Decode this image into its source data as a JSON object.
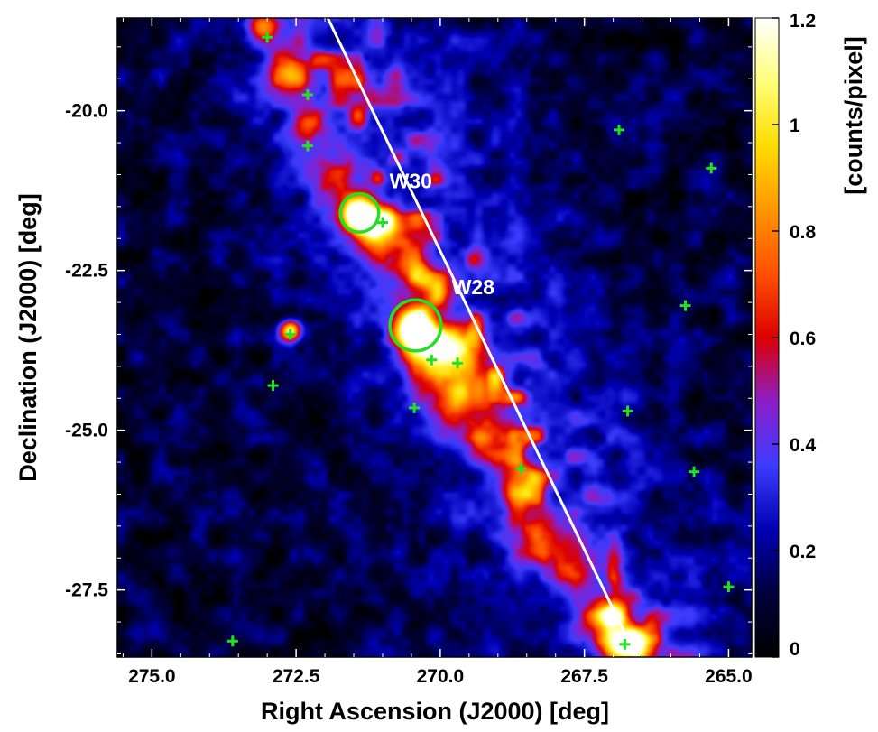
{
  "chart_data": {
    "type": "heatmap",
    "xlabel": "Right Ascension (J2000) [deg]",
    "ylabel": "Declination (J2000) [deg]",
    "x_axis_reversed": true,
    "xlim": [
      275.6,
      264.6
    ],
    "ylim": [
      -28.55,
      -18.55
    ],
    "x_ticks": [
      275.0,
      272.5,
      270.0,
      267.5,
      265.0
    ],
    "x_tick_labels": [
      "275.0",
      "272.5",
      "270.0",
      "267.5",
      "265.0"
    ],
    "y_ticks": [
      -20.0,
      -22.5,
      -25.0,
      -27.5
    ],
    "y_tick_labels": [
      "-20.0",
      "-22.5",
      "-25.0",
      "-27.5"
    ],
    "colorbar": {
      "label": "[counts/pixel]",
      "range": [
        0,
        1.2
      ],
      "ticks": [
        0,
        0.2,
        0.4,
        0.6,
        0.8,
        1.0,
        1.2
      ],
      "tick_labels": [
        "0",
        "0.2",
        "0.4",
        "0.6",
        "0.8",
        "1",
        "1.2"
      ],
      "colormap": [
        "#000000",
        "#00003c",
        "#0000b4",
        "#3c3cff",
        "#8c1ec8",
        "#dc0000",
        "#ff5000",
        "#ff9600",
        "#ffdc00",
        "#ffff78",
        "#ffffff"
      ]
    },
    "emission_blobs": [
      {
        "ra": 273.05,
        "dec": -18.7,
        "level": 0.55,
        "sigma": 0.18
      },
      {
        "ra": 272.6,
        "dec": -19.4,
        "level": 0.58,
        "sigma": 0.25
      },
      {
        "ra": 272.3,
        "dec": -20.2,
        "level": 0.5,
        "sigma": 0.22
      },
      {
        "ra": 271.4,
        "dec": -21.6,
        "level": 1.18,
        "sigma": 0.2
      },
      {
        "ra": 271.2,
        "dec": -21.9,
        "level": 0.65,
        "sigma": 0.22
      },
      {
        "ra": 270.9,
        "dec": -21.7,
        "level": 0.5,
        "sigma": 0.16
      },
      {
        "ra": 270.6,
        "dec": -22.4,
        "level": 0.45,
        "sigma": 0.25
      },
      {
        "ra": 270.1,
        "dec": -22.8,
        "level": 0.42,
        "sigma": 0.25
      },
      {
        "ra": 270.45,
        "dec": -23.4,
        "level": 1.15,
        "sigma": 0.22
      },
      {
        "ra": 270.2,
        "dec": -23.8,
        "level": 0.72,
        "sigma": 0.3
      },
      {
        "ra": 269.7,
        "dec": -23.7,
        "level": 0.65,
        "sigma": 0.25
      },
      {
        "ra": 269.4,
        "dec": -24.3,
        "level": 0.45,
        "sigma": 0.3
      },
      {
        "ra": 269.1,
        "dec": -25.1,
        "level": 0.42,
        "sigma": 0.3
      },
      {
        "ra": 268.6,
        "dec": -25.8,
        "level": 0.55,
        "sigma": 0.25
      },
      {
        "ra": 268.3,
        "dec": -26.6,
        "level": 0.4,
        "sigma": 0.3
      },
      {
        "ra": 267.7,
        "dec": -27.1,
        "level": 0.38,
        "sigma": 0.3
      },
      {
        "ra": 267.1,
        "dec": -27.9,
        "level": 0.55,
        "sigma": 0.25
      },
      {
        "ra": 266.9,
        "dec": -28.35,
        "level": 0.85,
        "sigma": 0.22
      },
      {
        "ra": 266.5,
        "dec": -28.4,
        "level": 0.6,
        "sigma": 0.2
      },
      {
        "ra": 272.6,
        "dec": -23.45,
        "level": 1.0,
        "sigma": 0.12
      },
      {
        "ra": 271.8,
        "dec": -21.0,
        "level": 0.38,
        "sigma": 0.3
      },
      {
        "ra": 269.9,
        "dec": -24.6,
        "level": 0.35,
        "sigma": 0.3
      }
    ],
    "galactic_plane": {
      "points": [
        [
          271.95,
          -18.55
        ],
        [
          266.6,
          -28.55
        ]
      ],
      "color": "#ffffff"
    },
    "sources": [
      {
        "name": "W30",
        "ra": 271.4,
        "dec": -21.6,
        "circle_radius_deg": 0.3
      },
      {
        "name": "W28",
        "ra": 270.43,
        "dec": -23.36,
        "circle_radius_deg": 0.4
      }
    ],
    "source_circle_color": "#22e022",
    "markers": {
      "symbol": "plus",
      "color": "#22e022",
      "points": [
        [
          273.0,
          -18.85
        ],
        [
          272.3,
          -19.75
        ],
        [
          272.3,
          -20.55
        ],
        [
          271.0,
          -21.75
        ],
        [
          272.6,
          -23.5
        ],
        [
          272.9,
          -24.3
        ],
        [
          270.45,
          -24.65
        ],
        [
          270.15,
          -23.9
        ],
        [
          269.7,
          -23.95
        ],
        [
          268.6,
          -25.6
        ],
        [
          266.8,
          -28.35
        ],
        [
          266.9,
          -20.3
        ],
        [
          265.3,
          -20.9
        ],
        [
          265.75,
          -23.05
        ],
        [
          266.75,
          -24.7
        ],
        [
          265.6,
          -25.65
        ],
        [
          265.0,
          -27.45
        ],
        [
          273.6,
          -28.3
        ]
      ]
    }
  }
}
